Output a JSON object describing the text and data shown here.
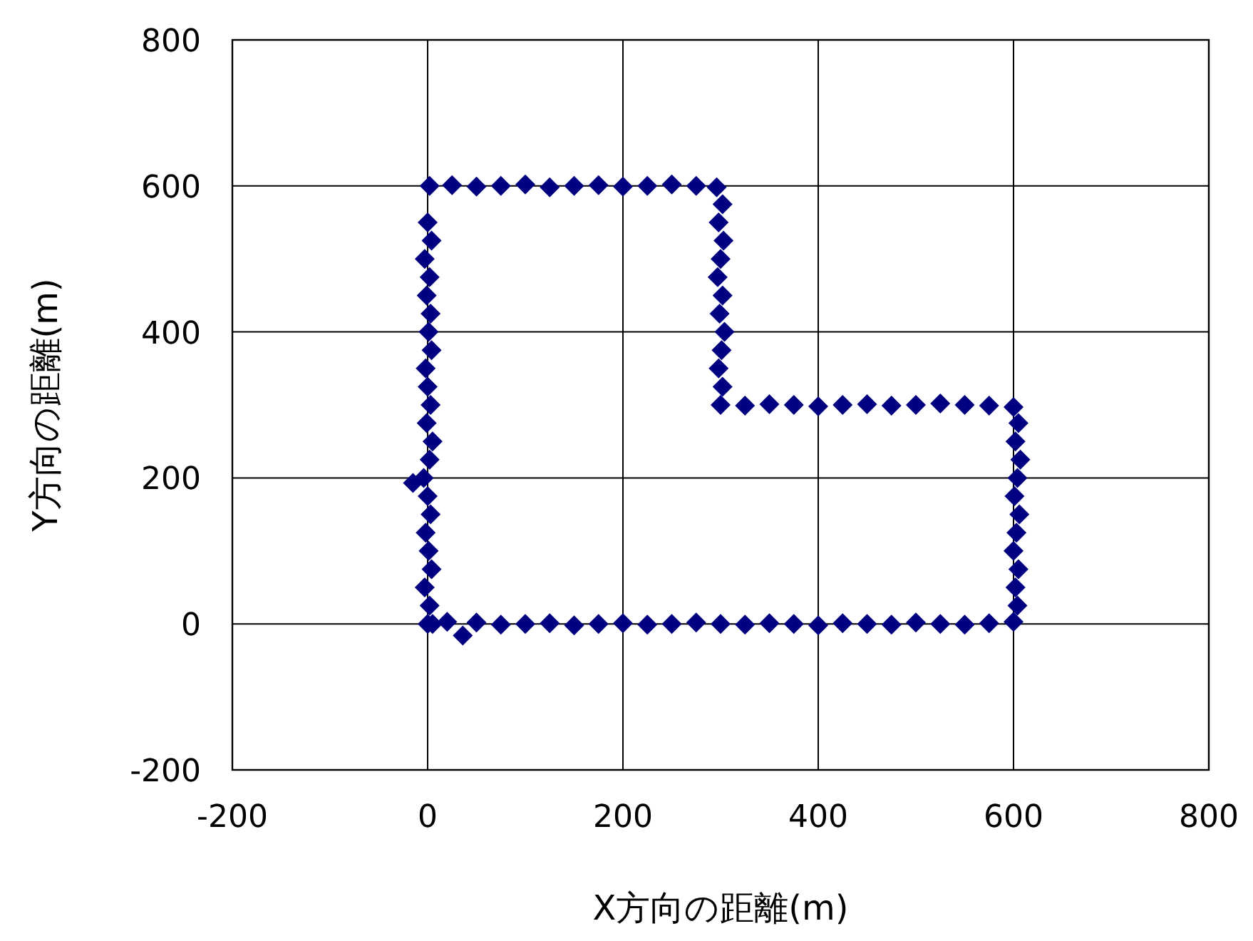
{
  "chart_data": {
    "type": "scatter",
    "xlabel": "X方向の距離(m)",
    "ylabel": "Y方向の距離(m)",
    "xlim": [
      -200,
      800
    ],
    "ylim": [
      -200,
      800
    ],
    "xticks": [
      -200,
      0,
      200,
      400,
      600,
      800
    ],
    "yticks": [
      -200,
      0,
      200,
      400,
      600,
      800
    ],
    "grid": true,
    "marker": "diamond",
    "series": [
      {
        "color": "#000080",
        "x": [
          0,
          2,
          -3,
          4,
          1,
          -2,
          3,
          0,
          -4,
          2,
          5,
          -1,
          3,
          0,
          -2,
          4,
          1,
          -15,
          3,
          -1,
          2,
          -3,
          4,
          0,
          2,
          25,
          50,
          75,
          100,
          125,
          150,
          175,
          200,
          225,
          250,
          275,
          296,
          302,
          298,
          303,
          300,
          297,
          302,
          299,
          304,
          301,
          298,
          302,
          300,
          325,
          350,
          375,
          400,
          425,
          450,
          475,
          500,
          525,
          550,
          575,
          600,
          605,
          602,
          607,
          604,
          601,
          606,
          603,
          600,
          605,
          602,
          604,
          600,
          575,
          550,
          525,
          500,
          475,
          450,
          425,
          400,
          375,
          350,
          325,
          300,
          275,
          250,
          225,
          200,
          175,
          150,
          125,
          100,
          75,
          50,
          36,
          20,
          5
        ],
        "values": [
          0,
          25,
          50,
          75,
          100,
          125,
          150,
          175,
          200,
          225,
          250,
          275,
          300,
          325,
          350,
          375,
          400,
          193,
          425,
          450,
          475,
          500,
          525,
          550,
          600,
          601,
          599,
          600,
          602,
          598,
          600,
          601,
          599,
          600,
          602,
          600,
          598,
          575,
          550,
          525,
          500,
          475,
          450,
          425,
          400,
          375,
          350,
          325,
          300,
          299,
          301,
          300,
          298,
          300,
          301,
          299,
          300,
          302,
          300,
          299,
          297,
          275,
          250,
          225,
          200,
          175,
          150,
          125,
          100,
          75,
          50,
          25,
          3,
          1,
          -1,
          0,
          2,
          -1,
          0,
          1,
          -2,
          0,
          1,
          -1,
          0,
          2,
          0,
          -1,
          1,
          0,
          -2,
          1,
          0,
          -1,
          2,
          -16,
          3,
          0
        ]
      }
    ]
  }
}
